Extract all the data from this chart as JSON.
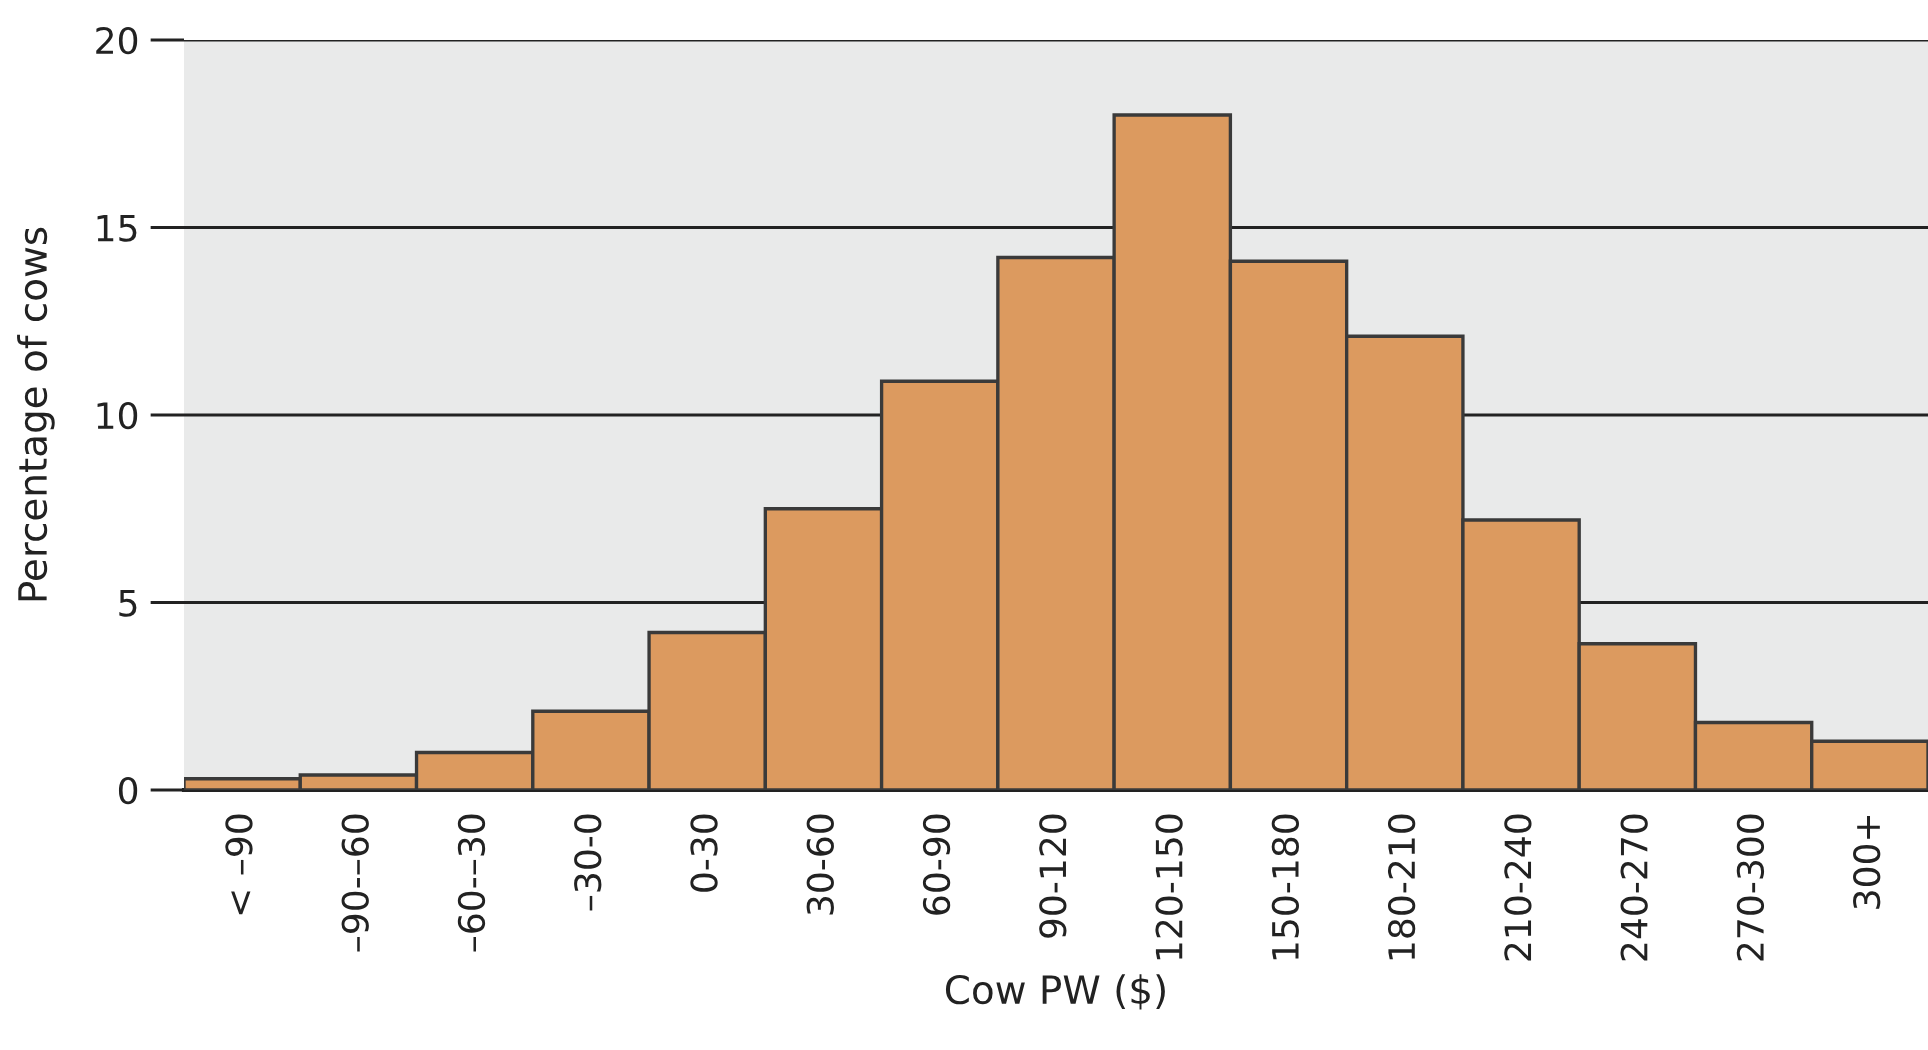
{
  "chart_data": {
    "type": "bar",
    "xlabel": "Cow PW ($)",
    "ylabel": "Percentage of cows",
    "categories": [
      "< –90",
      "–90-–60",
      "–60-–30",
      "–30-0",
      "0-30",
      "30-60",
      "60-90",
      "90-120",
      "120-150",
      "150-180",
      "180-210",
      "210-240",
      "240-270",
      "270-300",
      "300+"
    ],
    "values": [
      0.3,
      0.4,
      1.0,
      2.1,
      4.2,
      7.5,
      10.9,
      14.2,
      18.0,
      14.1,
      12.1,
      7.2,
      3.9,
      1.8,
      1.3
    ],
    "color": "#dc9a5f",
    "ylim": [
      0,
      20
    ],
    "yticks": [
      0,
      5,
      10,
      15,
      20
    ],
    "grid": "y",
    "legend": false
  }
}
